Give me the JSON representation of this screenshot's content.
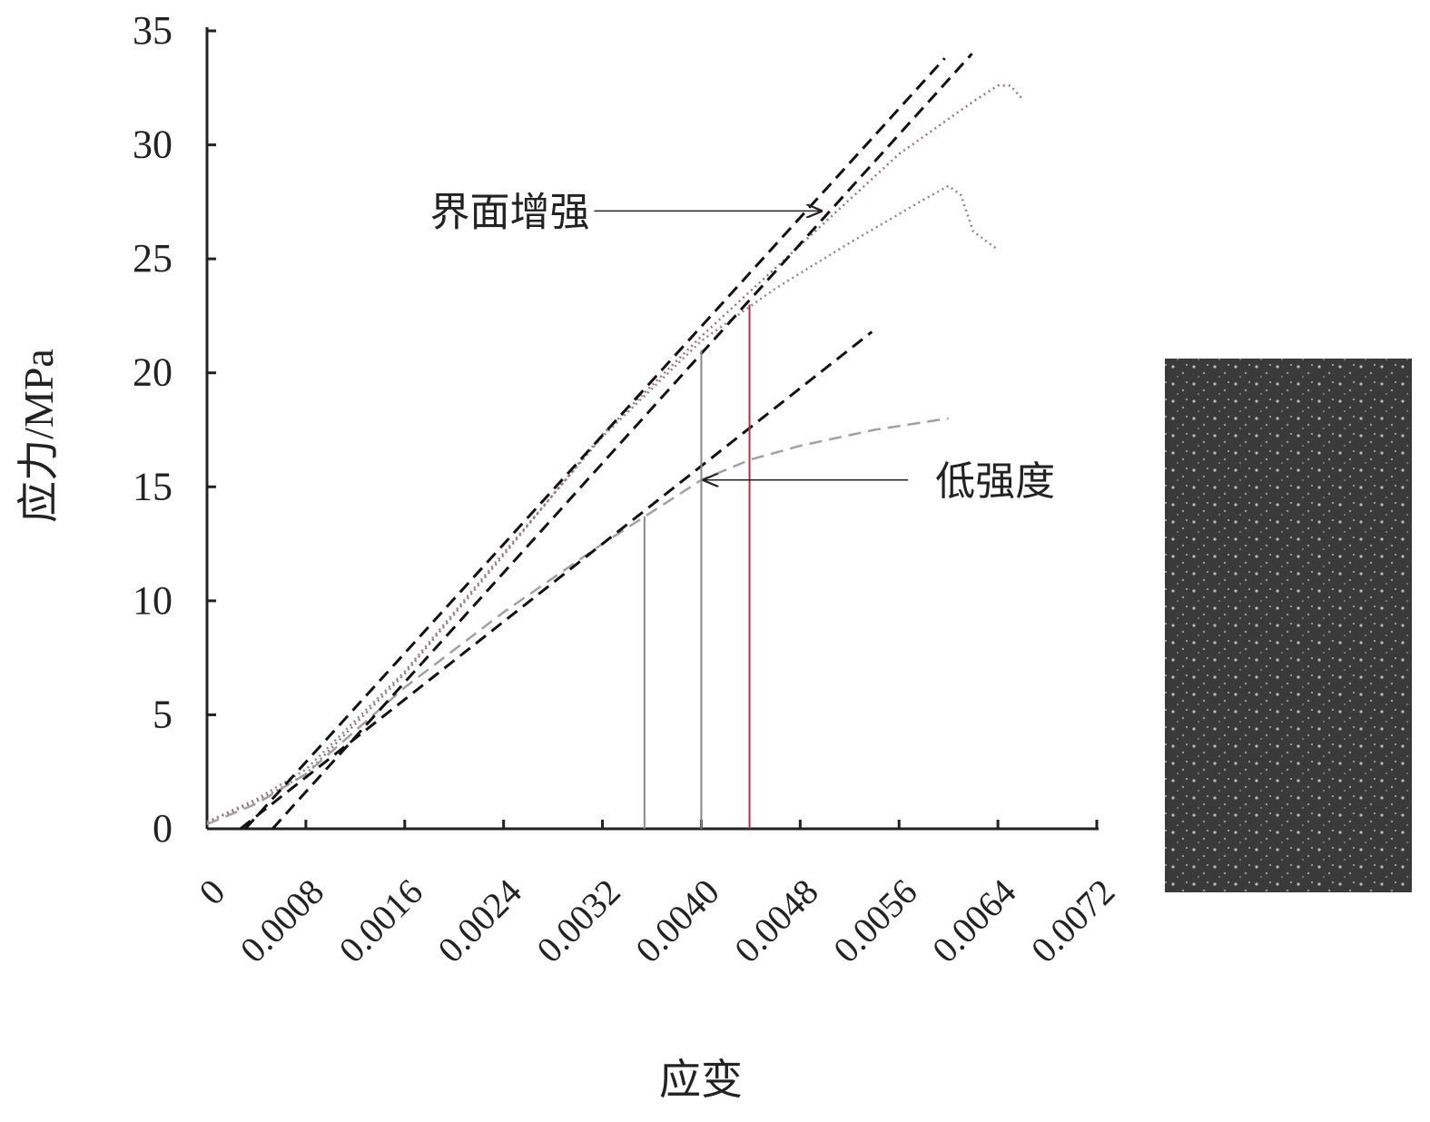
{
  "chart_data": {
    "type": "line",
    "xlabel": "应变",
    "ylabel": "应力/MPa",
    "xlim": [
      0,
      0.0072
    ],
    "ylim": [
      0,
      35
    ],
    "xticks": [
      0,
      0.0008,
      0.0016,
      0.0024,
      0.0032,
      {
        "value": 0.004,
        "label": "0.0040"
      },
      0.0048,
      0.0056,
      0.0064,
      0.0072
    ],
    "yticks": [
      0,
      5,
      10,
      15,
      20,
      25,
      30,
      35
    ],
    "series": [
      {
        "color": "#888888",
        "style": "dotted",
        "x": [
          0,
          0.0004,
          0.0008,
          0.0016,
          0.0024,
          0.0032,
          0.004,
          0.0046,
          0.0052,
          0.0058,
          0.006,
          0.0061,
          0.0062,
          0.0064
        ],
        "values": [
          0.3,
          1.3,
          2.6,
          6.9,
          12.1,
          17.2,
          21.4,
          23.7,
          25.7,
          27.6,
          28.2,
          27.8,
          26.2,
          25.4
        ]
      },
      {
        "color": "#a07080",
        "style": "dotted",
        "x": [
          0,
          0.0004,
          0.0008,
          0.0016,
          0.0024,
          0.0032,
          0.004,
          0.0048,
          0.0056,
          0.0062,
          0.0064,
          0.0065,
          0.0066
        ],
        "values": [
          0.3,
          1.2,
          2.4,
          6.8,
          12,
          17.3,
          21.6,
          25.6,
          29.6,
          31.9,
          32.6,
          32.6,
          32
        ]
      },
      {
        "color": "#a0a0a0",
        "style": "dashed",
        "x": [
          0,
          0.0004,
          0.0008,
          0.0016,
          0.0024,
          0.0032,
          0.0036,
          0.004,
          0.0044,
          0.0048,
          0.0054,
          0.006
        ],
        "values": [
          0.2,
          1.1,
          2.4,
          6.2,
          9.5,
          12.5,
          13.9,
          15.3,
          16.2,
          16.8,
          17.5,
          18
        ]
      },
      {
        "color": "#111111",
        "style": "dashed",
        "x": [
          0.00031,
          0.00597
        ],
        "values": [
          0,
          33.8
        ]
      },
      {
        "color": "#111111",
        "style": "dashed",
        "x": [
          0.00053,
          0.00619
        ],
        "values": [
          0,
          34
        ]
      },
      {
        "color": "#111111",
        "style": "dashed",
        "x": [
          0.00027,
          0.00538
        ],
        "values": [
          0,
          21.8
        ]
      }
    ],
    "markers": [
      {
        "x": 0.00354,
        "y": 13.7,
        "color": "#888888"
      },
      {
        "x": 0.004,
        "y": 21,
        "color": "#888888"
      },
      {
        "x": 0.00439,
        "y": 23,
        "color": "#b03050"
      }
    ],
    "annotations": [
      {
        "text": "界面增强",
        "x": 0.00497,
        "y": 27.1
      },
      {
        "text": "低强度",
        "x": 0.00402,
        "y": 15.3
      }
    ]
  }
}
